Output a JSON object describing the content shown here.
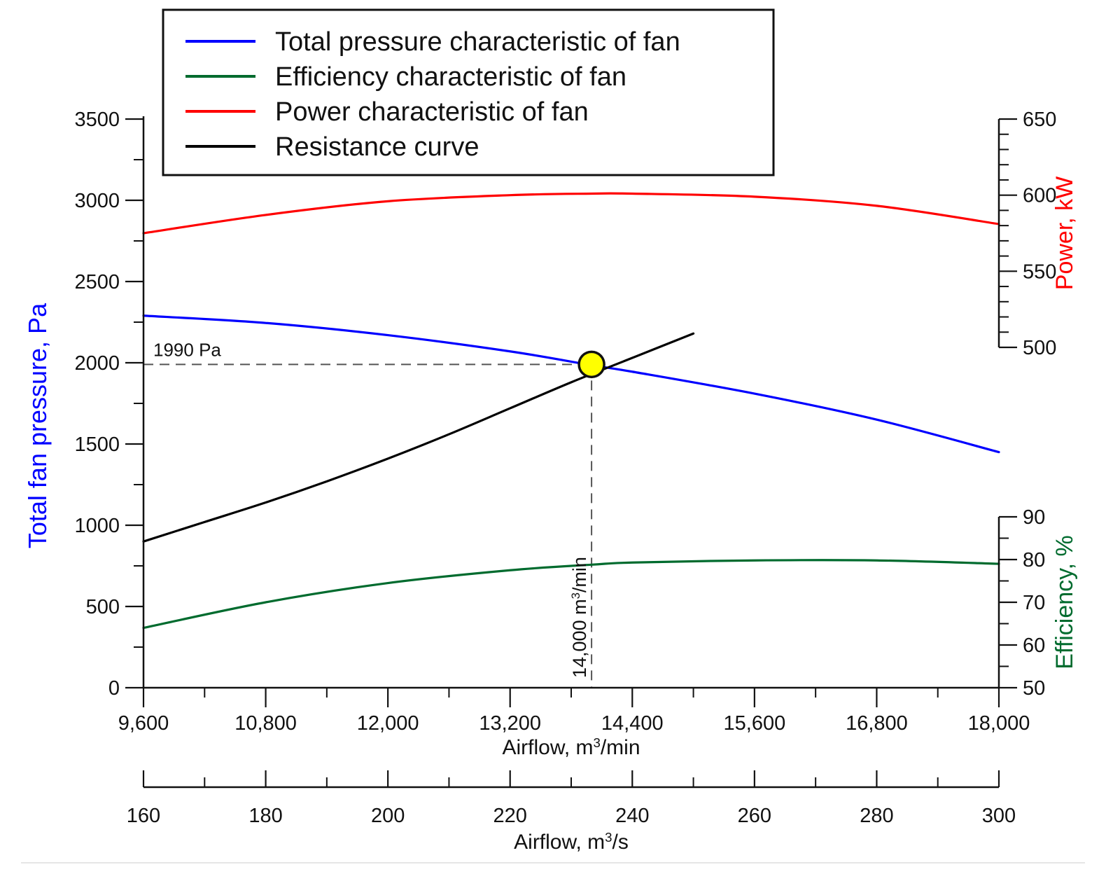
{
  "chart_data": {
    "type": "line",
    "colors": {
      "pressure": "#0000ff",
      "efficiency": "#006b2e",
      "power": "#ff0000",
      "resistance": "#000000",
      "operating_point": "#ffff00"
    },
    "legend": {
      "position": "top",
      "entries": [
        {
          "key": "pressure",
          "label": "Total pressure characteristic of fan"
        },
        {
          "key": "efficiency",
          "label": "Efficiency characteristic of fan"
        },
        {
          "key": "power",
          "label": "Power characteristic of fan"
        },
        {
          "key": "resistance",
          "label": "Resistance curve"
        }
      ]
    },
    "x_axis": {
      "label_prefix": "Airflow, m",
      "label_sup": "3",
      "label_suffix": "/min",
      "range": [
        9600,
        18000
      ],
      "ticks": [
        9600,
        10800,
        12000,
        13200,
        14400,
        15600,
        16800,
        18000
      ],
      "tick_labels": [
        "9,600",
        "10,800",
        "12,000",
        "13,200",
        "14,400",
        "15,600",
        "16,800",
        "18,000"
      ]
    },
    "x2_axis": {
      "label_prefix": "Airflow, m",
      "label_sup": "3",
      "label_suffix": "/s",
      "range": [
        160,
        300
      ],
      "ticks": [
        160,
        180,
        200,
        220,
        240,
        260,
        280,
        300
      ],
      "tick_labels": [
        "160",
        "180",
        "200",
        "220",
        "240",
        "260",
        "280",
        "300"
      ]
    },
    "y_left": {
      "label_prefix": "Total fan pressure, ",
      "label_unit": "Pa",
      "range": [
        0,
        3500
      ],
      "ticks": [
        0,
        500,
        1000,
        1500,
        2000,
        2500,
        3000,
        3500
      ],
      "tick_labels": [
        "0",
        "500",
        "1000",
        "1500",
        "2000",
        "2500",
        "3000",
        "3500"
      ]
    },
    "y_power": {
      "label_prefix": "Power, ",
      "label_unit": "kW",
      "range": [
        500,
        650
      ],
      "ticks": [
        500,
        550,
        600,
        650
      ],
      "tick_labels": [
        "500",
        "550",
        "600",
        "650"
      ]
    },
    "y_efficiency": {
      "label_prefix": "Efficiency, ",
      "label_unit": "%",
      "range": [
        50,
        90
      ],
      "ticks": [
        50,
        60,
        70,
        80,
        90
      ],
      "tick_labels": [
        "50",
        "60",
        "70",
        "80",
        "90"
      ]
    },
    "series": [
      {
        "key": "pressure",
        "name": "Total pressure characteristic of fan",
        "axis": "left",
        "x": [
          9600,
          10800,
          12000,
          13200,
          14000,
          14400,
          15600,
          16800,
          18000
        ],
        "y": [
          2290,
          2245,
          2170,
          2070,
          1985,
          1945,
          1810,
          1650,
          1450
        ]
      },
      {
        "key": "power",
        "name": "Power characteristic of fan",
        "axis": "power",
        "x": [
          9600,
          10800,
          12000,
          13200,
          14000,
          14400,
          15600,
          16800,
          18000
        ],
        "y": [
          575,
          587,
          596,
          600,
          601,
          601,
          599,
          593,
          581
        ]
      },
      {
        "key": "efficiency",
        "name": "Efficiency characteristic of fan",
        "axis": "efficiency",
        "x": [
          9600,
          10800,
          12000,
          13200,
          14000,
          14400,
          15600,
          16800,
          18000
        ],
        "y": [
          64,
          70,
          74.5,
          77.5,
          78.8,
          79.3,
          79.8,
          79.8,
          79
        ]
      },
      {
        "key": "resistance",
        "name": "Resistance curve",
        "axis": "left",
        "x": [
          9600,
          10200,
          10800,
          11400,
          12000,
          12600,
          13200,
          13800,
          14400,
          15000
        ],
        "y": [
          900,
          1020,
          1140,
          1270,
          1410,
          1560,
          1720,
          1880,
          2030,
          2180
        ]
      }
    ],
    "operating_point": {
      "x": 14000,
      "y": 1990
    },
    "annotations": {
      "pressure_label": "1990 Pa",
      "airflow_label_prefix": "14,000 m",
      "airflow_label_sup": "3",
      "airflow_label_suffix": "/min"
    }
  }
}
